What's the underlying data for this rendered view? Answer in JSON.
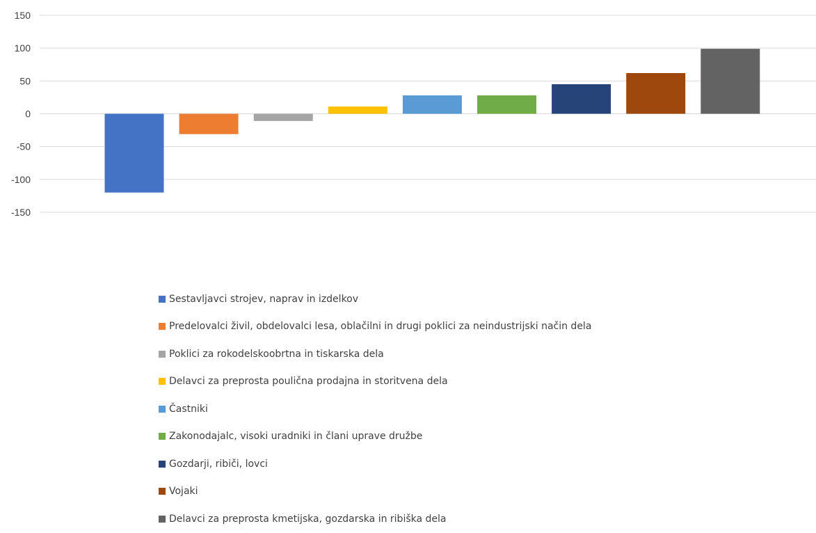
{
  "chart_data": {
    "type": "bar",
    "title": "",
    "xlabel": "",
    "ylabel": "",
    "ylim": [
      -150,
      150
    ],
    "yticks": [
      150,
      100,
      50,
      0,
      -50,
      -100,
      -150
    ],
    "grid": true,
    "legend_position": "bottom",
    "categories": [
      "Sestavljavci strojev, naprav in izdelkov",
      "Predelovalci živil, obdelovalci lesa, oblačilni in drugi poklici za neindustrijski način dela",
      "Poklici za rokodelskoobrtna in tiskarska dela",
      "Delavci za preprosta poulična prodajna in storitvena dela",
      "Častniki",
      "Zakonodajalc, visoki uradniki in člani uprave družbe",
      "Gozdarji, ribiči, lovci",
      "Vojaki",
      "Delavci za preprosta kmetijska, gozdarska in ribiška dela"
    ],
    "values": [
      -120,
      -31,
      -11,
      11,
      28,
      28,
      45,
      62,
      99
    ],
    "colors": [
      "#4472C4",
      "#ED7D31",
      "#A5A5A5",
      "#FFC000",
      "#5B9BD5",
      "#70AD47",
      "#264478",
      "#9E480E",
      "#636363"
    ]
  }
}
